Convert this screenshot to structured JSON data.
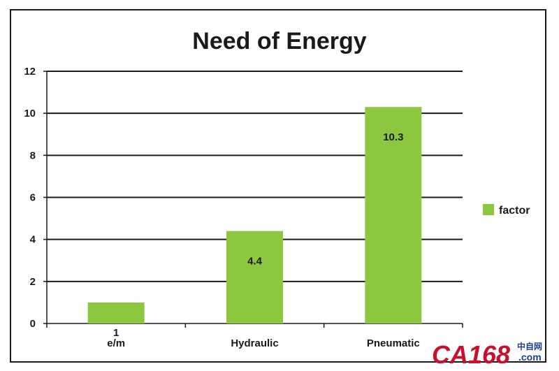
{
  "chart_data": {
    "type": "bar",
    "title": "Need of Energy",
    "categories": [
      "e/m",
      "Hydraulic",
      "Pneumatic"
    ],
    "series": [
      {
        "name": "factor",
        "values": [
          1,
          4.4,
          10.3
        ],
        "labels": [
          "1",
          "4.4",
          "10.3"
        ]
      }
    ],
    "yticks": [
      "0",
      "2",
      "4",
      "6",
      "8",
      "10",
      "12"
    ],
    "ylim": [
      0,
      12
    ],
    "grid": true,
    "legend_position": "right",
    "bar_color": "#8dc63f"
  },
  "watermark": {
    "main": "CA168",
    "cn": "中自网",
    "com": ".com",
    "main_color": "#c8102e",
    "sub_color": "#1a3e8c"
  }
}
